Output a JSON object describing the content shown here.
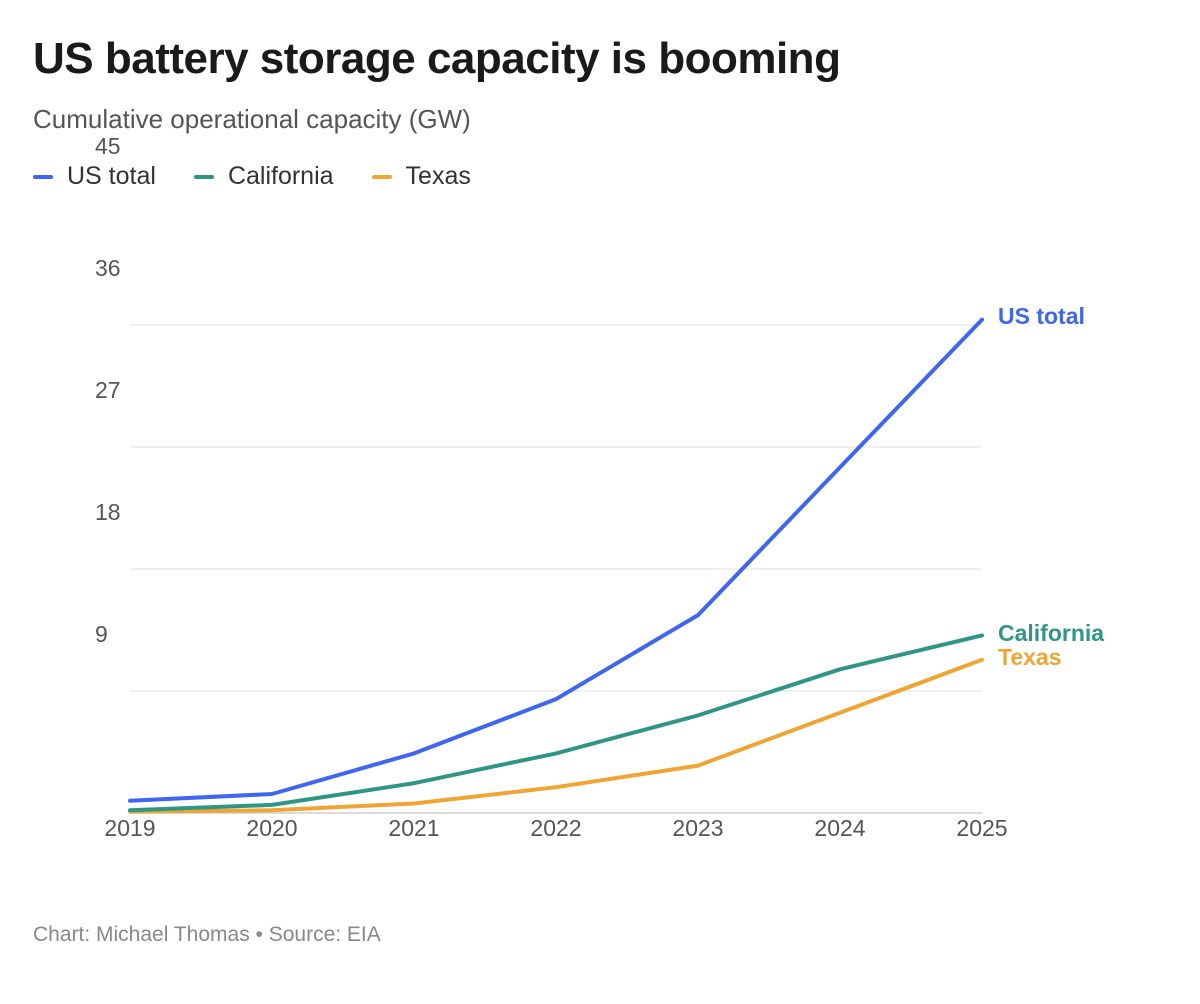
{
  "header": {
    "title": "US battery storage capacity is booming",
    "subtitle": "Cumulative operational capacity (GW)"
  },
  "legend": [
    {
      "label": "US total",
      "color": "#3f66f0"
    },
    {
      "label": "California",
      "color": "#2f9685"
    },
    {
      "label": "Texas",
      "color": "#f0a433"
    }
  ],
  "footer": {
    "credit": "Chart: Michael Thomas • Source: EIA"
  },
  "chart_data": {
    "type": "line",
    "x": [
      "2019",
      "2020",
      "2021",
      "2022",
      "2023",
      "2024",
      "2025"
    ],
    "ylim": [
      0,
      45
    ],
    "yticks": [
      9,
      18,
      27,
      36,
      45
    ],
    "grid": true,
    "legend_position": "top-left",
    "series": [
      {
        "name": "US total",
        "color": "#3f66f0",
        "values": [
          0.9,
          1.4,
          4.4,
          8.4,
          14.6,
          25.5,
          36.4
        ]
      },
      {
        "name": "California",
        "color": "#2f9685",
        "values": [
          0.2,
          0.6,
          2.2,
          4.4,
          7.2,
          10.6,
          13.1
        ]
      },
      {
        "name": "Texas",
        "color": "#f0a433",
        "values": [
          0.1,
          0.2,
          0.7,
          1.9,
          3.5,
          7.4,
          11.3
        ]
      }
    ]
  }
}
